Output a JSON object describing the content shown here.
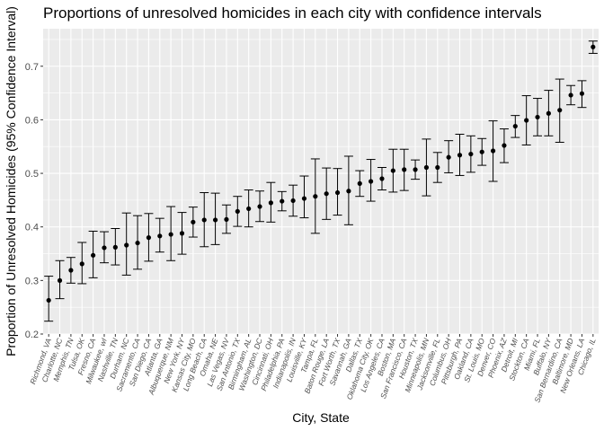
{
  "chart_data": {
    "type": "scatter",
    "title": "Proportions of unresolved homicides in each city with confidence intervals",
    "xlabel": "City, State",
    "ylabel": "Proportion of Unresolved Homicides (95% Confidence Interval)",
    "ylim": [
      0.2,
      0.77
    ],
    "yticks": [
      0.2,
      0.3,
      0.4,
      0.5,
      0.6,
      0.7
    ],
    "ytick_labels": [
      "0.2",
      "0.3",
      "0.4",
      "0.5",
      "0.6",
      "0.7"
    ],
    "grid": true,
    "point_color": "#000000",
    "panel_color": "#ebebeb",
    "grid_color": "#ffffff",
    "categories": [
      "Richmond, VA",
      "Charlotte, NC",
      "Memphis, TN",
      "Tulsa, OK",
      "Fresno, CA",
      "Milwaukee, wI",
      "Nashville, TN",
      "Durham, NC",
      "Sacramento, CA",
      "San Diego, CA",
      "Atlanta, GA",
      "Albuquerque, NM",
      "New York, NY",
      "Kansas City, MO",
      "Long Beach, CA",
      "Omaha, NE",
      "Las Vegas, NV",
      "San Antonio, TX",
      "Birmingham, AL",
      "Washington, DC",
      "Cincinnati, OH",
      "Philadelphia, PA",
      "Indianapolis, IN",
      "Louisville, KY",
      "Tampa, FL",
      "Baton Rouge, LA",
      "Fort Worth, TX",
      "Savannah, GA",
      "Dallas, TX",
      "Oklahoma City, OK",
      "Los Angeles, CA",
      "Boston, MA",
      "San Francisco, CA",
      "Houston, TX",
      "Minneapolis, MN",
      "Jacksonville, FL",
      "Columbus, OH",
      "Pittsburgh, PA",
      "Oakland, CA",
      "St. Louis, MO",
      "Denver, CO",
      "Phoenix, AZ",
      "Detroit, MI",
      "Stockton, CA",
      "Miami, FL",
      "Buffalo, NY",
      "San Bernardino, CA",
      "Baltimore, MD",
      "New Orleans, LA",
      "Chicago, IL"
    ],
    "estimate": [
      0.263,
      0.3,
      0.319,
      0.331,
      0.347,
      0.361,
      0.362,
      0.366,
      0.37,
      0.38,
      0.383,
      0.386,
      0.388,
      0.409,
      0.413,
      0.413,
      0.414,
      0.429,
      0.434,
      0.438,
      0.445,
      0.448,
      0.449,
      0.453,
      0.457,
      0.462,
      0.464,
      0.467,
      0.481,
      0.485,
      0.49,
      0.505,
      0.507,
      0.507,
      0.511,
      0.511,
      0.53,
      0.534,
      0.536,
      0.54,
      0.542,
      0.552,
      0.588,
      0.599,
      0.605,
      0.612,
      0.618,
      0.646,
      0.649,
      0.736
    ],
    "conf_low": [
      0.224,
      0.266,
      0.295,
      0.294,
      0.305,
      0.333,
      0.329,
      0.31,
      0.321,
      0.336,
      0.353,
      0.337,
      0.349,
      0.381,
      0.363,
      0.367,
      0.388,
      0.401,
      0.4,
      0.41,
      0.409,
      0.43,
      0.42,
      0.417,
      0.388,
      0.414,
      0.422,
      0.404,
      0.457,
      0.448,
      0.469,
      0.465,
      0.468,
      0.489,
      0.458,
      0.483,
      0.501,
      0.496,
      0.502,
      0.515,
      0.485,
      0.52,
      0.567,
      0.553,
      0.57,
      0.57,
      0.558,
      0.628,
      0.623,
      0.724
    ],
    "conf_high": [
      0.308,
      0.337,
      0.343,
      0.371,
      0.392,
      0.391,
      0.397,
      0.426,
      0.421,
      0.425,
      0.416,
      0.438,
      0.427,
      0.437,
      0.464,
      0.463,
      0.441,
      0.457,
      0.469,
      0.467,
      0.483,
      0.466,
      0.478,
      0.495,
      0.527,
      0.51,
      0.509,
      0.532,
      0.505,
      0.526,
      0.511,
      0.545,
      0.545,
      0.525,
      0.564,
      0.539,
      0.561,
      0.573,
      0.57,
      0.565,
      0.598,
      0.583,
      0.608,
      0.645,
      0.64,
      0.655,
      0.676,
      0.664,
      0.673,
      0.747
    ]
  }
}
